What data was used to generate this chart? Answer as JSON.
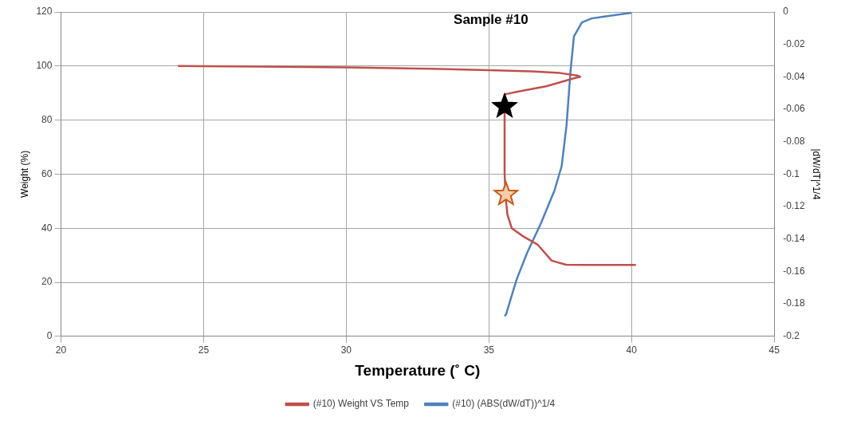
{
  "chart_data": {
    "type": "line",
    "title": "Sample #10",
    "xlabel": "Temperature (˚ C)",
    "ylabel": "Weight (%)",
    "y2label": "|dW/dT|^1/4",
    "xlim": [
      20,
      45
    ],
    "xticks": [
      20,
      25,
      30,
      35,
      40,
      45
    ],
    "ylim": [
      0,
      120
    ],
    "yticks": [
      0,
      20,
      40,
      60,
      80,
      100,
      120
    ],
    "y2lim": [
      -0.2,
      0
    ],
    "y2ticks": [
      -0.2,
      -0.18,
      -0.16,
      -0.14,
      -0.12,
      -0.1,
      -0.08,
      -0.06,
      -0.04,
      -0.02,
      0
    ],
    "grid": true,
    "legend": "bottom",
    "marker": "none",
    "line_style": "solid",
    "series": [
      {
        "name": "(#10) Weight VS Temp",
        "color": "#c0504d",
        "x": [
          24.1,
          27,
          30,
          33,
          35,
          36.5,
          37.5,
          38.1,
          38.2,
          38.0,
          37,
          36,
          35.55,
          35.55,
          35.6,
          35.65,
          35.8,
          36.2,
          36.7,
          37.2,
          37.7,
          38.5,
          40.15
        ],
        "values": [
          100,
          99.8,
          99.5,
          99,
          98.5,
          98,
          97.4,
          96.5,
          96,
          95.5,
          92.5,
          90.5,
          89.5,
          60,
          50,
          45,
          40,
          37,
          34,
          28,
          26.5,
          26.4,
          26.4
        ]
      },
      {
        "name": "(#10) (ABS(dW/dT))^1/4",
        "color": "#4f81bd",
        "axis": "y2",
        "x": [
          40,
          39,
          38.6,
          38.26,
          37.98,
          37.86,
          37.72,
          37.55,
          37.3,
          36.83,
          36.34,
          35.97,
          35.6,
          35.55
        ],
        "values": [
          -0.0005,
          -0.003,
          -0.004,
          -0.0065,
          -0.015,
          -0.0365,
          -0.07,
          -0.095,
          -0.11,
          -0.13,
          -0.1485,
          -0.165,
          -0.1865,
          -0.1875
        ]
      },
      {
        "type": "scatter",
        "marker": "star",
        "color": "#000000",
        "x": [
          35.55
        ],
        "values": [
          85
        ]
      },
      {
        "type": "scatter",
        "marker": "star",
        "color": "#f8cbad",
        "x": [
          35.6
        ],
        "values": [
          52.5
        ]
      }
    ]
  }
}
